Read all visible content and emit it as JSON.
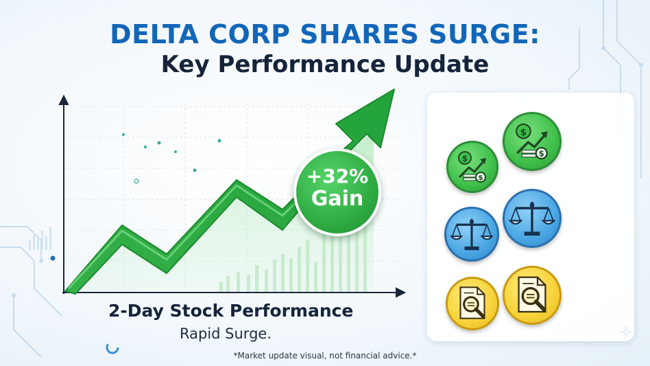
{
  "header": {
    "title": "DELTA CORP SHARES SURGE:",
    "subtitle": "Key Performance Update"
  },
  "badge": {
    "line1": "+32%",
    "line2": "Gain"
  },
  "chart": {
    "caption": "2-Day Stock Performance",
    "subcaption": "Rapid Surge."
  },
  "footer": {
    "disclaimer": "*Market update visual, not financial advice.*"
  },
  "colors": {
    "title_blue": "#1266b8",
    "title_dark": "#16243a",
    "arrow_green": "#2fab42"
  },
  "icons": [
    "finance-growth-icon",
    "finance-growth-icon",
    "balance-scale-icon",
    "balance-scale-icon",
    "document-search-icon",
    "document-search-icon"
  ]
}
